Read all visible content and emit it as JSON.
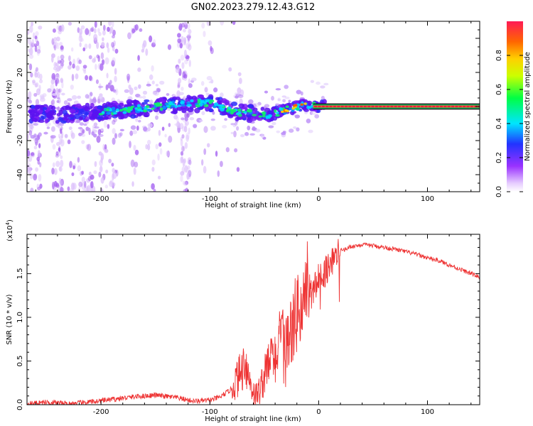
{
  "title": "GN02.2023.279.12.43.G12",
  "colors": {
    "snr_line": "#ee3333",
    "band": "#ff1a3a",
    "band_core": "#ff7f2a"
  },
  "chart_data": [
    {
      "type": "heatmap",
      "xlabel": "Height of straight line (km)",
      "ylabel": "Frequency (Hz)",
      "xlim": [
        -268,
        148
      ],
      "ylim": [
        -50,
        50
      ],
      "xticks": [
        -200,
        -100,
        0,
        100
      ],
      "xtick_labels": [
        "-200",
        "-100",
        "0",
        "100"
      ],
      "yticks": [
        -40,
        -20,
        0,
        20,
        40
      ],
      "ytick_labels": [
        "-40",
        "-20",
        "0",
        "20",
        "40"
      ],
      "colorbar": {
        "label": "Normalized spectral amplitude",
        "range": [
          0,
          1
        ],
        "ticks": [
          0.0,
          0.2,
          0.4,
          0.6,
          0.8
        ],
        "tick_labels": [
          "0.0",
          "0.2",
          "0.4",
          "0.6",
          "0.8"
        ]
      },
      "ridge": {
        "x": [
          -265,
          -240,
          -200,
          -160,
          -120,
          -100,
          -85,
          -70,
          -55,
          -45,
          -35,
          -25,
          -15,
          -5,
          0,
          148
        ],
        "y": [
          -4,
          -5,
          -3,
          -1,
          2,
          2,
          -1,
          -4,
          -4,
          -5,
          -3,
          -1,
          1,
          0,
          0,
          0
        ]
      }
    },
    {
      "type": "line",
      "xlabel": "Height of straight line (km)",
      "ylabel": "SNR (10 * v/v)",
      "y_multiplier": "(x10",
      "y_multiplier_exp": "4",
      "y_multiplier_close": ")",
      "xlim": [
        -268,
        148
      ],
      "ylim": [
        0,
        1.95
      ],
      "xticks": [
        -200,
        -100,
        0,
        100
      ],
      "xtick_labels": [
        "-200",
        "-100",
        "0",
        "100"
      ],
      "yticks": [
        0.0,
        0.5,
        1.0,
        1.5
      ],
      "ytick_labels": [
        "0.0",
        "0.5",
        "1.0",
        "1.5"
      ],
      "series": [
        {
          "x": [
            -268,
            -250,
            -230,
            -210,
            -190,
            -170,
            -150,
            -130,
            -115,
            -100,
            -90,
            -80,
            -75,
            -70,
            -68,
            -65,
            -62,
            -58,
            -55,
            -50,
            -45,
            -40,
            -35,
            -30,
            -25,
            -20,
            -15,
            -10,
            -5,
            0,
            5,
            10,
            20,
            30,
            40,
            50,
            60,
            70,
            80,
            90,
            100,
            110,
            120,
            130,
            140,
            148
          ],
          "y": [
            0.01,
            0.03,
            0.01,
            0.03,
            0.06,
            0.09,
            0.11,
            0.08,
            0.04,
            0.05,
            0.09,
            0.18,
            0.3,
            0.4,
            0.55,
            0.35,
            0.22,
            0.1,
            0.15,
            0.32,
            0.5,
            0.55,
            0.75,
            0.7,
            0.85,
            1.05,
            1.15,
            1.35,
            1.3,
            1.45,
            1.5,
            1.62,
            1.76,
            1.81,
            1.83,
            1.82,
            1.8,
            1.78,
            1.75,
            1.72,
            1.68,
            1.65,
            1.6,
            1.55,
            1.5,
            1.46
          ]
        }
      ]
    }
  ]
}
